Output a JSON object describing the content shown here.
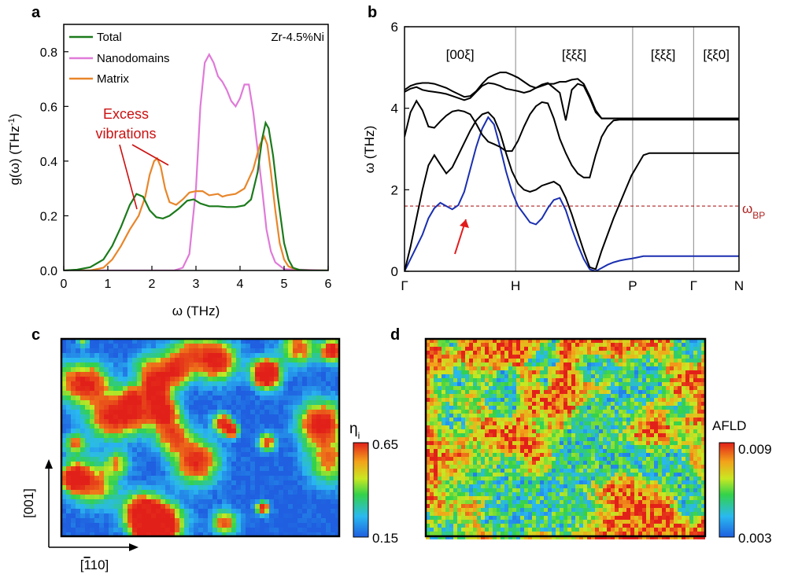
{
  "figure": {
    "panels": {
      "a": "a",
      "b": "b",
      "c": "c",
      "d": "d"
    }
  },
  "colors": {
    "total": "#1b7a1b",
    "nanodomains": "#e07ad8",
    "matrix": "#e8862a",
    "annotation": "#cc1111",
    "branch": "#1a2fb0",
    "wbp_line": "#b02020"
  },
  "chart_data": [
    {
      "panel": "a",
      "type": "line",
      "xlabel": "ω (THz)",
      "ylabel": "g(ω) (THz-1)",
      "xlim": [
        0,
        6
      ],
      "ylim": [
        0,
        0.9
      ],
      "xticks": [
        "0",
        "1",
        "2",
        "3",
        "4",
        "5",
        "6"
      ],
      "yticks": [
        "0.0",
        "0.2",
        "0.4",
        "0.6",
        "0.8"
      ],
      "inset_label": "Zr-4.5%Ni",
      "annotation": [
        "Excess",
        "vibrations"
      ],
      "legend": [
        "Total",
        "Nanodomains",
        "Matrix"
      ],
      "series": [
        {
          "name": "Total",
          "x": [
            0,
            0.3,
            0.6,
            0.9,
            1.1,
            1.3,
            1.5,
            1.65,
            1.8,
            1.95,
            2.1,
            2.25,
            2.4,
            2.6,
            2.8,
            2.95,
            3.1,
            3.3,
            3.5,
            3.7,
            3.9,
            4.1,
            4.25,
            4.4,
            4.5,
            4.58,
            4.65,
            4.75,
            4.85,
            5.0,
            5.1,
            5.2,
            5.35,
            5.6,
            6.0
          ],
          "y": [
            0,
            0.003,
            0.012,
            0.04,
            0.09,
            0.16,
            0.24,
            0.28,
            0.27,
            0.22,
            0.195,
            0.19,
            0.2,
            0.225,
            0.255,
            0.26,
            0.245,
            0.235,
            0.235,
            0.232,
            0.232,
            0.238,
            0.26,
            0.36,
            0.48,
            0.54,
            0.52,
            0.42,
            0.28,
            0.1,
            0.04,
            0.01,
            0.002,
            0,
            0
          ]
        },
        {
          "name": "Nanodomains",
          "x": [
            0,
            2.5,
            2.7,
            2.85,
            3.0,
            3.1,
            3.2,
            3.3,
            3.4,
            3.5,
            3.6,
            3.7,
            3.8,
            3.9,
            4.0,
            4.1,
            4.2,
            4.3,
            4.4,
            4.5,
            4.6,
            4.7,
            4.8,
            5.0,
            6.0
          ],
          "y": [
            0,
            0,
            0.01,
            0.06,
            0.3,
            0.6,
            0.76,
            0.79,
            0.76,
            0.71,
            0.69,
            0.66,
            0.62,
            0.6,
            0.63,
            0.68,
            0.68,
            0.58,
            0.44,
            0.3,
            0.15,
            0.07,
            0.03,
            0.005,
            0
          ]
        },
        {
          "name": "Matrix",
          "x": [
            0,
            0.6,
            0.9,
            1.1,
            1.3,
            1.5,
            1.7,
            1.85,
            1.95,
            2.05,
            2.12,
            2.2,
            2.3,
            2.4,
            2.55,
            2.7,
            2.85,
            3.0,
            3.15,
            3.3,
            3.5,
            3.6,
            3.7,
            3.9,
            4.1,
            4.3,
            4.45,
            4.55,
            4.62,
            4.7,
            4.8,
            4.9,
            5.0,
            5.1,
            5.3,
            5.6,
            6.0
          ],
          "y": [
            0,
            0,
            0.01,
            0.04,
            0.09,
            0.15,
            0.2,
            0.27,
            0.35,
            0.4,
            0.41,
            0.38,
            0.3,
            0.25,
            0.24,
            0.26,
            0.285,
            0.29,
            0.29,
            0.275,
            0.28,
            0.27,
            0.275,
            0.28,
            0.3,
            0.37,
            0.46,
            0.49,
            0.46,
            0.36,
            0.22,
            0.1,
            0.04,
            0.015,
            0.002,
            0,
            0
          ]
        }
      ]
    },
    {
      "panel": "b",
      "type": "line",
      "ylabel": "ω (THz)",
      "ylim": [
        0,
        6
      ],
      "yticks": [
        "0",
        "2",
        "4",
        "6"
      ],
      "xticks": [
        "Γ",
        "H",
        "P",
        "Γ",
        "N"
      ],
      "directions": [
        "[00ξ]",
        "[ξξξ]",
        "[ξξξ]",
        "[ξξ0]"
      ],
      "reference_label": "ωBP",
      "reference_value": 1.6,
      "x": [
        0,
        0.5,
        1,
        1.5,
        2,
        2.5,
        3,
        3.5,
        4,
        4.5,
        5,
        5.5,
        6,
        6.5,
        7,
        7.5,
        8,
        8.5,
        9,
        9.5,
        10,
        10.5,
        11,
        11.5,
        12,
        12.5,
        13,
        13.5,
        14,
        14.5,
        15,
        15.5,
        16,
        16.5,
        17,
        17.5,
        18,
        18.5,
        19,
        19.5,
        20,
        20.5,
        21,
        21.5,
        22,
        22.5,
        23,
        23.5,
        24,
        24.5,
        25,
        25.5,
        26,
        26.5,
        27,
        27.5,
        28
      ],
      "series": [
        {
          "name": "",
          "y": [
            0,
            0.3,
            0.6,
            0.9,
            1.3,
            1.55,
            1.68,
            1.6,
            1.52,
            1.62,
            1.95,
            2.5,
            3.05,
            3.5,
            3.78,
            3.6,
            3.05,
            2.45,
            1.95,
            1.6,
            1.4,
            1.2,
            1.15,
            1.3,
            1.55,
            1.75,
            1.8,
            1.5,
            1.05,
            0.65,
            0.3,
            0.05,
            0,
            0.08,
            0.16,
            0.22,
            0.26,
            0.29,
            0.31,
            0.34,
            0.37,
            0.37,
            0.37,
            0.37,
            0.37,
            0.37,
            0.37,
            0.37,
            0.37,
            0.37,
            0.37,
            0.37,
            0.37,
            0.37,
            0.37,
            0.37,
            0.37
          ]
        },
        {
          "name": "",
          "y": [
            0,
            0.6,
            1.3,
            2,
            2.6,
            2.85,
            2.62,
            2.4,
            2.55,
            2.85,
            3.15,
            3.45,
            3.7,
            3.85,
            3.9,
            3.75,
            3.4,
            2.9,
            2.45,
            2.15,
            2.0,
            1.95,
            2.0,
            2.1,
            2.15,
            2.2,
            2.1,
            1.8,
            1.4,
            0.95,
            0.5,
            0.1,
            0.05,
            0.5,
            0.9,
            1.3,
            1.65,
            2.0,
            2.35,
            2.6,
            2.85,
            2.9,
            2.9,
            2.9,
            2.9,
            2.9,
            2.9,
            2.9,
            2.9,
            2.9,
            2.9,
            2.9,
            2.9,
            2.9,
            2.9,
            2.9,
            2.9
          ]
        },
        {
          "name": "",
          "y": [
            3.3,
            3.9,
            4.18,
            3.95,
            3.55,
            3.52,
            3.68,
            3.82,
            3.92,
            3.95,
            3.92,
            3.85,
            3.62,
            3.35,
            3.18,
            3.12,
            3.05,
            2.95,
            2.95,
            3.2,
            3.55,
            3.85,
            4.05,
            4.15,
            4.12,
            3.75,
            3.25,
            2.9,
            2.6,
            2.4,
            2.3,
            2.3,
            2.85,
            3.3,
            3.55,
            3.7,
            3.72,
            3.72,
            3.72,
            3.72,
            3.72,
            3.72,
            3.72,
            3.72,
            3.72,
            3.72,
            3.72,
            3.72,
            3.72,
            3.72,
            3.72,
            3.72,
            3.72,
            3.72,
            3.72,
            3.72,
            3.72
          ]
        },
        {
          "name": "",
          "y": [
            4.4,
            4.48,
            4.52,
            4.45,
            4.42,
            4.4,
            4.38,
            4.35,
            4.3,
            4.25,
            4.2,
            4.25,
            4.4,
            4.55,
            4.62,
            4.6,
            4.55,
            4.48,
            4.45,
            4.42,
            4.38,
            4.42,
            4.5,
            4.58,
            4.62,
            4.5,
            4.38,
            3.7,
            4.45,
            4.6,
            4.55,
            4.25,
            3.9,
            3.75,
            3.75,
            3.75,
            3.75,
            3.75,
            3.75,
            3.75,
            3.75,
            3.75,
            3.75,
            3.75,
            3.75,
            3.75,
            3.75,
            3.75,
            3.75,
            3.75,
            3.75,
            3.75,
            3.75,
            3.75,
            3.75,
            3.75,
            3.75
          ]
        },
        {
          "name": "",
          "y": [
            4.45,
            4.55,
            4.6,
            4.62,
            4.62,
            4.6,
            4.55,
            4.5,
            4.42,
            4.35,
            4.28,
            4.3,
            4.42,
            4.6,
            4.75,
            4.82,
            4.88,
            4.88,
            4.82,
            4.75,
            4.65,
            4.55,
            4.5,
            4.55,
            4.6,
            4.6,
            4.65,
            4.65,
            4.7,
            4.72,
            4.6,
            4.3,
            3.95,
            3.75,
            3.75,
            3.75,
            3.75,
            3.75,
            3.75,
            3.75,
            3.75,
            3.75,
            3.75,
            3.75,
            3.75,
            3.75,
            3.75,
            3.75,
            3.75,
            3.75,
            3.75,
            3.75,
            3.75,
            3.75,
            3.75,
            3.75,
            3.75
          ]
        }
      ]
    },
    {
      "panel": "c",
      "type": "heatmap",
      "colorbar_label": "ηi",
      "colorbar_max": "0.65",
      "colorbar_min": "0.15",
      "axis_vertical": "[001]",
      "axis_horizontal": "[110]"
    },
    {
      "panel": "d",
      "type": "heatmap",
      "colorbar_label": "AFLD",
      "colorbar_max": "0.009",
      "colorbar_min": "0.003"
    }
  ]
}
